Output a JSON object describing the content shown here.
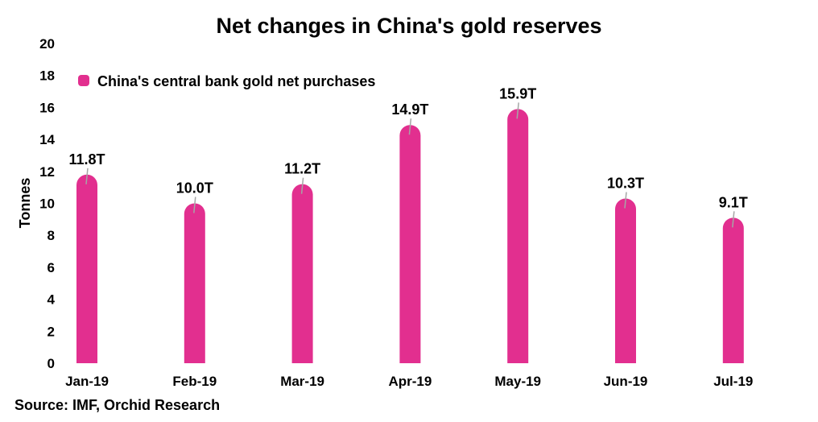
{
  "chart_data": {
    "type": "bar",
    "title": "Net changes in China's gold reserves",
    "ylabel": "Tonnes",
    "xlabel": "",
    "ylim": [
      0,
      20
    ],
    "yticks": [
      0,
      2,
      4,
      6,
      8,
      10,
      12,
      14,
      16,
      18,
      20
    ],
    "grid": false,
    "legend_position": "top-left",
    "categories": [
      "Jan-19",
      "Feb-19",
      "Mar-19",
      "Apr-19",
      "May-19",
      "Jun-19",
      "Jul-19"
    ],
    "series": [
      {
        "name": "China's central bank gold net purchases",
        "color": "#e22f8f",
        "values": [
          11.8,
          10.0,
          11.2,
          14.9,
          15.9,
          10.3,
          9.1
        ],
        "labels": [
          "11.8T",
          "10.0T",
          "11.2T",
          "14.9T",
          "15.9T",
          "10.3T",
          "9.1T"
        ]
      }
    ]
  },
  "source": "Source: IMF, Orchid Research",
  "colors": {
    "bar": "#e22f8f",
    "leader_line": "#a6a6a6"
  }
}
